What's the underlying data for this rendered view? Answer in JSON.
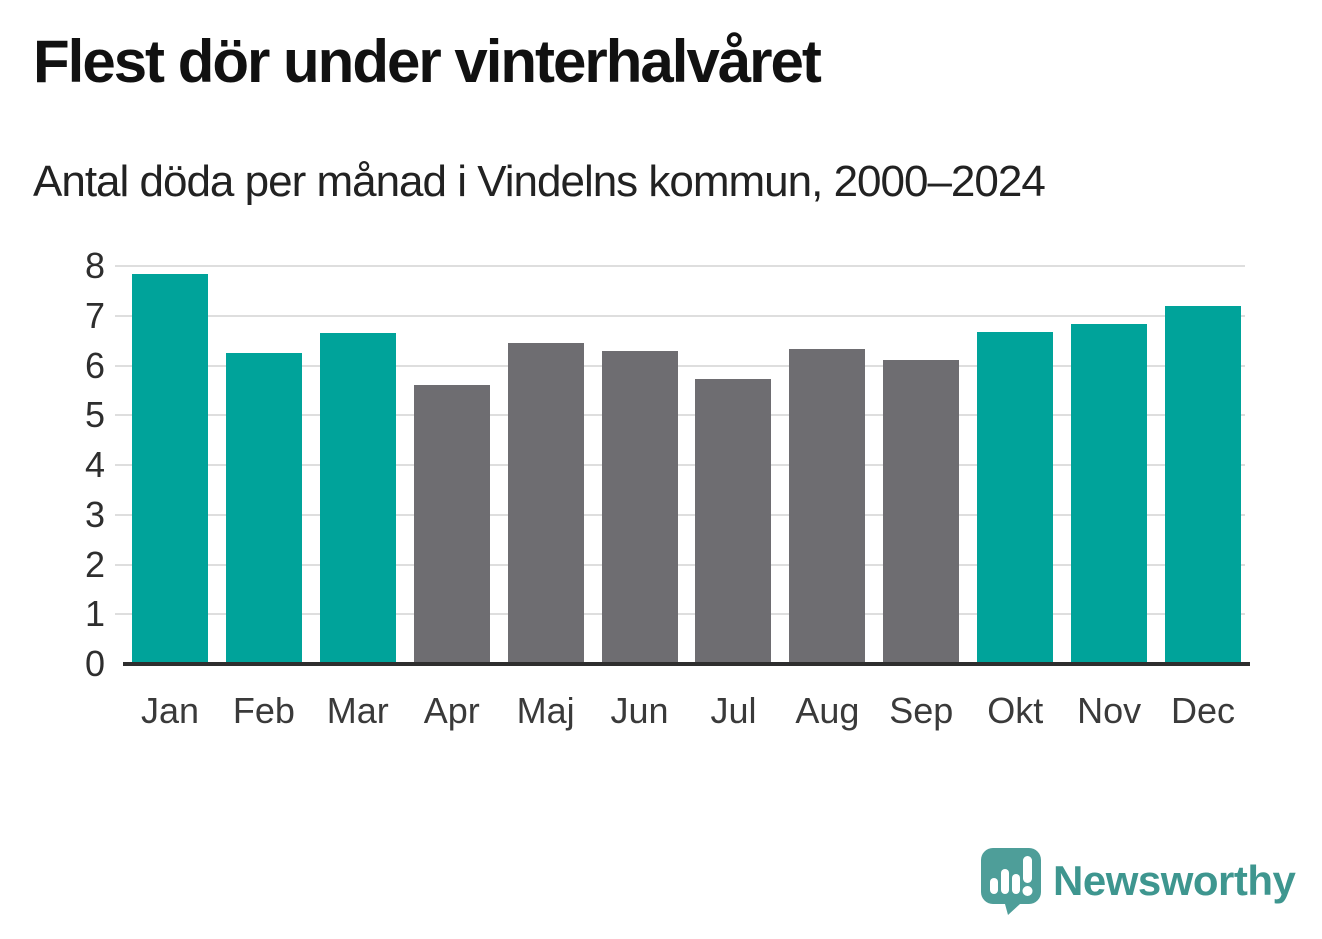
{
  "chart_data": {
    "type": "bar",
    "title": "Flest dör under vinterhalvåret",
    "subtitle": "Antal döda per månad i Vindelns kommun, 2000–2024",
    "categories": [
      "Jan",
      "Feb",
      "Mar",
      "Apr",
      "Maj",
      "Jun",
      "Jul",
      "Aug",
      "Sep",
      "Okt",
      "Nov",
      "Dec"
    ],
    "values": [
      7.84,
      6.26,
      6.65,
      5.61,
      6.45,
      6.29,
      5.73,
      6.34,
      6.12,
      6.67,
      6.84,
      7.2
    ],
    "bar_color_keys": [
      "winter",
      "winter",
      "winter",
      "summer",
      "summer",
      "summer",
      "summer",
      "summer",
      "summer",
      "winter",
      "winter",
      "winter"
    ],
    "palette": {
      "winter": "#00A39A",
      "summer": "#6E6D71"
    },
    "xlabel": "",
    "ylabel": "",
    "ylim": [
      0,
      8
    ],
    "yticks": [
      0,
      1,
      2,
      3,
      4,
      5,
      6,
      7,
      8
    ],
    "grid": "horizontal",
    "grid_color": "#DEDEDE",
    "axis_color": "#2E2E2E",
    "tick_label_color": "#2E2E2E",
    "legend_position": "none"
  },
  "branding": {
    "logo_text": "Newsworthy",
    "logo_text_color": "#3E968F",
    "logo_icon_color": "#4E9E99",
    "logo_icon": "speech-bubble-bar-chart-exclamation"
  }
}
